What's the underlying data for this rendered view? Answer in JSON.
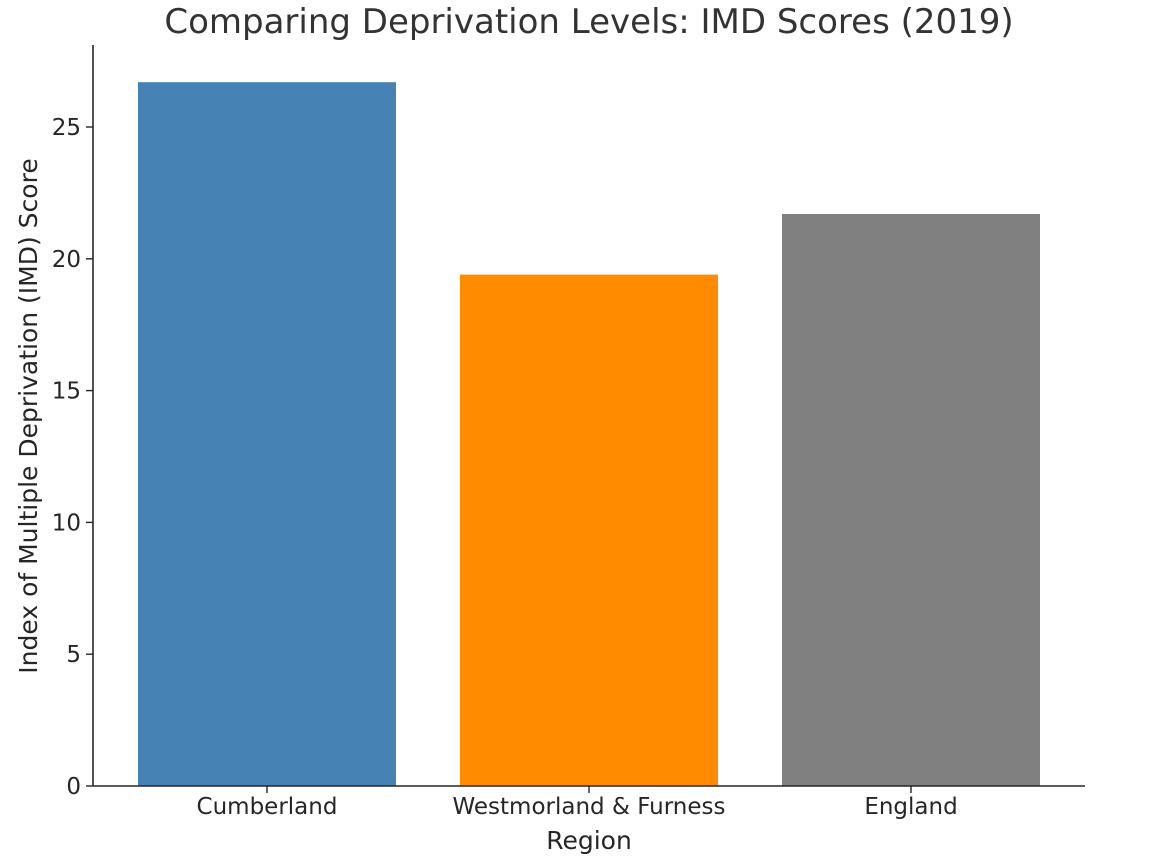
{
  "chart_data": {
    "type": "bar",
    "title": "Comparing Deprivation Levels: IMD Scores (2019)",
    "xlabel": "Region",
    "ylabel": "Index of Multiple Deprivation (IMD) Score",
    "categories": [
      "Cumberland",
      "Westmorland & Furness",
      "England"
    ],
    "values": [
      26.7,
      19.4,
      21.7
    ],
    "colors": [
      "#4682b4",
      "#ff8c00",
      "#808080"
    ],
    "ylim": [
      0,
      28
    ],
    "yticks": [
      0,
      5,
      10,
      15,
      20,
      25
    ],
    "grid": false,
    "legend": "none"
  }
}
